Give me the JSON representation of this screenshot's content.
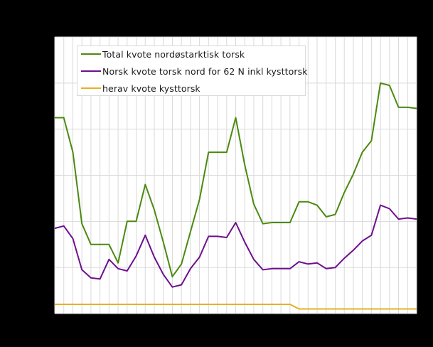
{
  "colors": {
    "background": "#000000",
    "plot_background": "#ffffff",
    "grid": "#d9d9d9",
    "series_total": "#4a8a0f",
    "series_norsk": "#6e0f8e",
    "series_kyst": "#e8b020"
  },
  "legend": {
    "items": [
      {
        "label": "Total kvote nordøstarktisk torsk",
        "color": "#4a8a0f"
      },
      {
        "label": "Norsk kvote torsk nord for 62 N inkl kysttorsk",
        "color": "#6e0f8e"
      },
      {
        "label": "herav kvote kysttorsk",
        "color": "#e8b020"
      }
    ]
  },
  "chart_data": {
    "type": "line",
    "title": "",
    "xlabel": "",
    "ylabel": "",
    "ylim": [
      0,
      1200000
    ],
    "yticks": [
      0,
      200000,
      400000,
      600000,
      800000,
      1000000,
      1200000
    ],
    "grid": true,
    "legend_position": "top-left inside",
    "categories": [
      1,
      2,
      3,
      4,
      5,
      6,
      7,
      8,
      9,
      10,
      11,
      12,
      13,
      14,
      15,
      16,
      17,
      18,
      19,
      20,
      21,
      22,
      23,
      24,
      25,
      26,
      27,
      28,
      29,
      30,
      31,
      32,
      33,
      34,
      35,
      36,
      37,
      38,
      39,
      40,
      41
    ],
    "series": [
      {
        "name": "Total kvote nordøstarktisk torsk",
        "color": "#4a8a0f",
        "values": [
          850000,
          850000,
          700000,
          390000,
          300000,
          300000,
          300000,
          220000,
          400000,
          400000,
          560000,
          450000,
          310000,
          160000,
          215000,
          355000,
          495000,
          700000,
          700000,
          700000,
          850000,
          645000,
          475000,
          390000,
          395000,
          395000,
          395000,
          485000,
          485000,
          470000,
          420000,
          430000,
          525000,
          605000,
          700000,
          750000,
          1000000,
          990000,
          895000,
          895000,
          890000
        ]
      },
      {
        "name": "Norsk kvote torsk nord for 62 N inkl kysttorsk",
        "color": "#6e0f8e",
        "values": [
          370000,
          380000,
          325000,
          190000,
          155000,
          150000,
          235000,
          195000,
          185000,
          250000,
          340000,
          245000,
          170000,
          115000,
          125000,
          195000,
          245000,
          335000,
          335000,
          330000,
          395000,
          310000,
          235000,
          190000,
          195000,
          195000,
          195000,
          225000,
          215000,
          220000,
          195000,
          200000,
          240000,
          275000,
          315000,
          340000,
          470000,
          455000,
          410000,
          415000,
          410000
        ]
      },
      {
        "name": "herav kvote kysttorsk",
        "color": "#e8b020",
        "values": [
          40000,
          40000,
          40000,
          40000,
          40000,
          40000,
          40000,
          40000,
          40000,
          40000,
          40000,
          40000,
          40000,
          40000,
          40000,
          40000,
          40000,
          40000,
          40000,
          40000,
          40000,
          40000,
          40000,
          40000,
          40000,
          40000,
          40000,
          20000,
          20000,
          20000,
          20000,
          20000,
          20000,
          20000,
          20000,
          20000,
          20000,
          20000,
          20000,
          20000,
          20000
        ]
      }
    ]
  }
}
